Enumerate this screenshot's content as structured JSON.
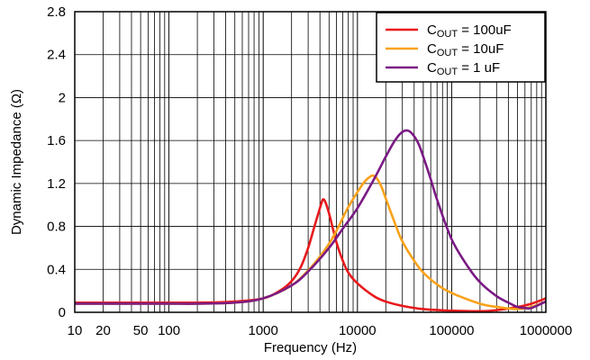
{
  "chart_data": {
    "type": "line",
    "xlabel": "Frequency (Hz)",
    "ylabel": "Dynamic Impedance (Ω)",
    "x_scale": "log",
    "xlim": [
      10,
      1000000
    ],
    "ylim": [
      0,
      2.8
    ],
    "x_ticks": [
      10,
      20,
      50,
      100,
      1000,
      10000,
      100000,
      1000000
    ],
    "x_tick_labels": [
      "10",
      "20",
      "50",
      "100",
      "1000",
      "10000",
      "100000",
      "1000000"
    ],
    "y_ticks": [
      0,
      0.4,
      0.8,
      1.2,
      1.6,
      2,
      2.4,
      2.8
    ],
    "y_tick_labels": [
      "0",
      "0.4",
      "0.8",
      "1.2",
      "1.6",
      "2",
      "2.4",
      "2.8"
    ],
    "grid": true,
    "legend_position": "top-right",
    "series": [
      {
        "legend": {
          "main": "C",
          "sub": "OUT",
          "rest": " = 100uF"
        },
        "color": "#e8191c",
        "x": [
          10,
          30,
          100,
          200,
          500,
          1000,
          1500,
          2000,
          2500,
          3000,
          3500,
          4000,
          4300,
          4600,
          5000,
          6000,
          7000,
          8000,
          10000,
          15000,
          20000,
          30000,
          50000,
          100000,
          200000,
          300000,
          500000,
          700000,
          1000000
        ],
        "y": [
          0.09,
          0.09,
          0.09,
          0.09,
          0.1,
          0.13,
          0.2,
          0.29,
          0.42,
          0.6,
          0.8,
          0.97,
          1.05,
          1.02,
          0.92,
          0.65,
          0.48,
          0.37,
          0.27,
          0.15,
          0.1,
          0.06,
          0.03,
          0.015,
          0.01,
          0.02,
          0.05,
          0.08,
          0.13
        ]
      },
      {
        "legend": {
          "main": "C",
          "sub": "OUT",
          "rest": " = 10uF"
        },
        "color": "#f8a21a",
        "x": [
          10,
          30,
          100,
          200,
          500,
          1000,
          2000,
          3000,
          4000,
          5000,
          6000,
          7000,
          8000,
          10000,
          12000,
          14000,
          15000,
          16000,
          18000,
          20000,
          25000,
          30000,
          40000,
          50000,
          70000,
          100000,
          200000,
          300000,
          500000,
          700000,
          1000000
        ],
        "y": [
          0.08,
          0.08,
          0.08,
          0.08,
          0.09,
          0.13,
          0.25,
          0.39,
          0.52,
          0.64,
          0.76,
          0.88,
          0.98,
          1.12,
          1.22,
          1.27,
          1.27,
          1.25,
          1.17,
          1.06,
          0.83,
          0.66,
          0.48,
          0.37,
          0.26,
          0.18,
          0.08,
          0.05,
          0.03,
          0.05,
          0.1
        ]
      },
      {
        "legend": {
          "main": "C",
          "sub": "OUT",
          "rest": " = 1 uF"
        },
        "color": "#7a1a84",
        "x": [
          10,
          30,
          100,
          200,
          500,
          1000,
          2000,
          3000,
          5000,
          7000,
          10000,
          15000,
          20000,
          25000,
          30000,
          35000,
          40000,
          45000,
          50000,
          60000,
          70000,
          100000,
          150000,
          200000,
          300000,
          400000,
          500000,
          600000,
          700000,
          1000000
        ],
        "y": [
          0.08,
          0.08,
          0.08,
          0.08,
          0.09,
          0.13,
          0.25,
          0.38,
          0.6,
          0.78,
          0.97,
          1.24,
          1.45,
          1.6,
          1.68,
          1.69,
          1.64,
          1.56,
          1.45,
          1.24,
          1.05,
          0.68,
          0.42,
          0.28,
          0.15,
          0.09,
          0.05,
          0.04,
          0.04,
          0.1
        ]
      }
    ]
  }
}
